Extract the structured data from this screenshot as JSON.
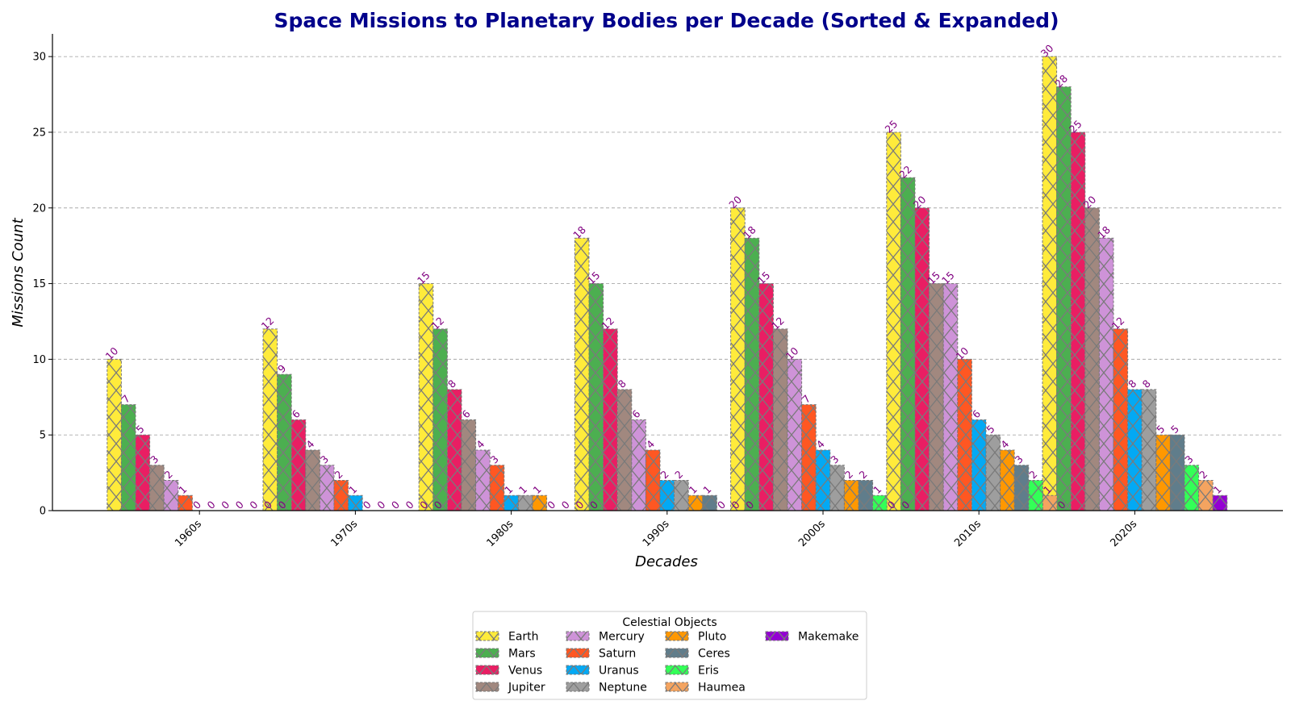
{
  "chart_data": {
    "type": "bar",
    "title": "Space Missions to Planetary Bodies per Decade (Sorted & Expanded)",
    "xlabel": "Decades",
    "ylabel": "Missions Count",
    "categories": [
      "1960s",
      "1970s",
      "1980s",
      "1990s",
      "2000s",
      "2010s",
      "2020s"
    ],
    "ylim": [
      0,
      31.5
    ],
    "yticks": [
      0,
      5,
      10,
      15,
      20,
      25,
      30
    ],
    "grid": "y-dashed",
    "legend": {
      "title": "Celestial Objects",
      "placement": "bottom-center",
      "columns": 4
    },
    "series": [
      {
        "name": "Earth",
        "color": "#ffeb3b",
        "values": [
          10,
          12,
          15,
          18,
          20,
          25,
          30
        ]
      },
      {
        "name": "Mars",
        "color": "#4caf50",
        "values": [
          7,
          9,
          12,
          15,
          18,
          22,
          28
        ]
      },
      {
        "name": "Venus",
        "color": "#e91e63",
        "values": [
          5,
          6,
          8,
          12,
          15,
          20,
          25
        ]
      },
      {
        "name": "Jupiter",
        "color": "#a1887f",
        "values": [
          3,
          4,
          6,
          8,
          12,
          15,
          20
        ]
      },
      {
        "name": "Mercury",
        "color": "#ce93d8",
        "values": [
          2,
          3,
          4,
          6,
          10,
          15,
          18
        ]
      },
      {
        "name": "Saturn",
        "color": "#ff5722",
        "values": [
          1,
          2,
          3,
          4,
          7,
          10,
          12
        ]
      },
      {
        "name": "Uranus",
        "color": "#03a9f4",
        "values": [
          0,
          1,
          1,
          2,
          4,
          6,
          8
        ]
      },
      {
        "name": "Neptune",
        "color": "#9e9e9e",
        "values": [
          0,
          0,
          1,
          2,
          3,
          5,
          8
        ]
      },
      {
        "name": "Pluto",
        "color": "#ff9800",
        "values": [
          0,
          0,
          1,
          1,
          2,
          4,
          5
        ]
      },
      {
        "name": "Ceres",
        "color": "#607d8b",
        "values": [
          0,
          0,
          0,
          1,
          2,
          3,
          5
        ]
      },
      {
        "name": "Eris",
        "color": "#33ff57",
        "values": [
          0,
          0,
          0,
          0,
          1,
          2,
          3
        ]
      },
      {
        "name": "Haumea",
        "color": "#f4a460",
        "values": [
          0,
          0,
          0,
          0,
          0,
          1,
          2
        ]
      },
      {
        "name": "Makemake",
        "color": "#9400d3",
        "values": [
          0,
          0,
          0,
          0,
          0,
          0,
          1
        ]
      }
    ],
    "colors": {
      "title": "#00008b",
      "data_labels": "#800080",
      "bar_edge": "#777777",
      "grid": "#aaaaaa"
    }
  }
}
